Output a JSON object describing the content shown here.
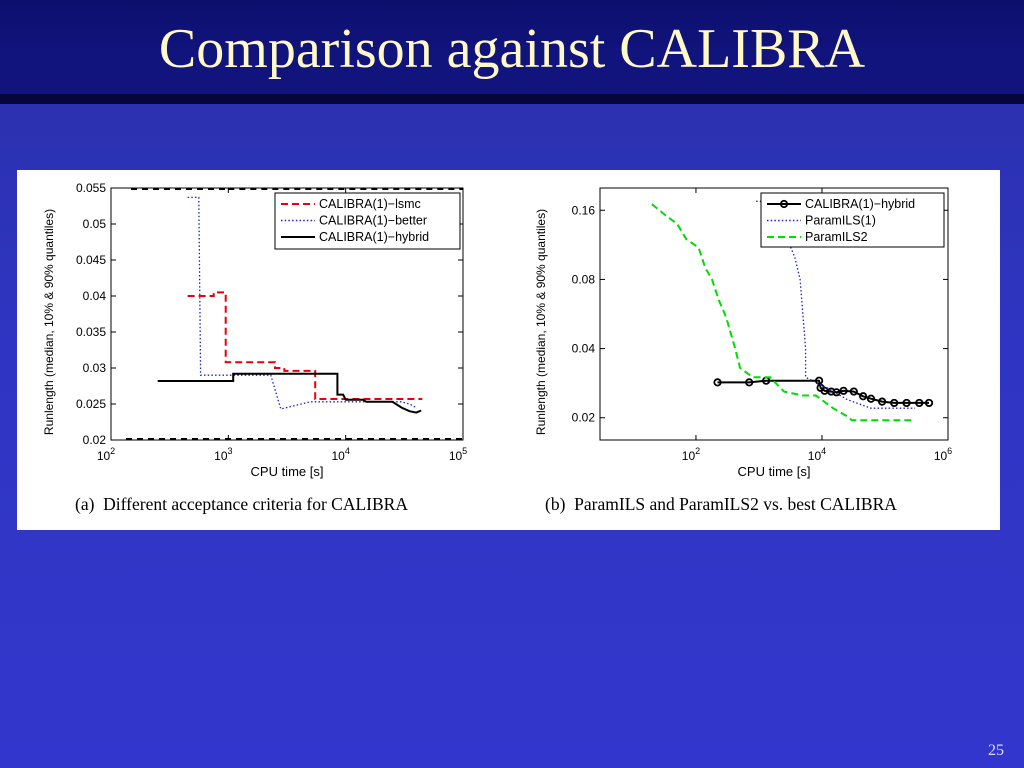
{
  "slide": {
    "title": "Comparison against CALIBRA",
    "page_number": "25"
  },
  "captions": {
    "a": "(a)  Different acceptance criteria for CALIBRA",
    "b": "(b)  ParamILS and ParamILS2 vs. best CALIBRA"
  },
  "colors": {
    "title_text": "#fff8c8",
    "background": "#3034c4",
    "series_red": "#e8000b",
    "series_blue": "#1f1fd0",
    "series_black": "#000000",
    "series_green": "#00dd00"
  },
  "chart_data": [
    {
      "type": "line",
      "xscale": "log",
      "xlim": [
        100,
        100000
      ],
      "ylim": [
        0.02,
        0.055
      ],
      "xlabel": "CPU time [s]",
      "ylabel": "Runlength (median, 10% & 90% quantiles)",
      "x_ticks": [
        {
          "base": "10",
          "exp": "2",
          "value": 100
        },
        {
          "base": "10",
          "exp": "3",
          "value": 1000
        },
        {
          "base": "10",
          "exp": "4",
          "value": 10000
        },
        {
          "base": "10",
          "exp": "5",
          "value": 100000
        }
      ],
      "y_ticks": [
        {
          "label": "0.02",
          "value": 0.02
        },
        {
          "label": "0.025",
          "value": 0.025
        },
        {
          "label": "0.03",
          "value": 0.03
        },
        {
          "label": "0.035",
          "value": 0.035
        },
        {
          "label": "0.04",
          "value": 0.04
        },
        {
          "label": "0.045",
          "value": 0.045
        },
        {
          "label": "0.05",
          "value": 0.05
        },
        {
          "label": "0.055",
          "value": 0.055
        }
      ],
      "legend_position": "top-right",
      "series": [
        {
          "name": "CALIBRA(1)−lsmc",
          "style": "dashed",
          "color": "#e8000b",
          "points": [
            [
              450,
              0.04
            ],
            [
              750,
              0.04
            ],
            [
              750,
              0.0405
            ],
            [
              950,
              0.0405
            ],
            [
              950,
              0.0308
            ],
            [
              2500,
              0.0308
            ],
            [
              2500,
              0.03
            ],
            [
              3000,
              0.03
            ],
            [
              3000,
              0.0296
            ],
            [
              5500,
              0.0296
            ],
            [
              5500,
              0.0257
            ],
            [
              45000,
              0.0257
            ]
          ]
        },
        {
          "name": "CALIBRA(1)−better",
          "style": "dotted",
          "color": "#1f1fd0",
          "points": [
            [
              450,
              0.0537
            ],
            [
              560,
              0.0537
            ],
            [
              580,
              0.029
            ],
            [
              2200,
              0.029
            ],
            [
              2300,
              0.029
            ],
            [
              2800,
              0.0243
            ],
            [
              5000,
              0.0253
            ],
            [
              15000,
              0.0253
            ],
            [
              25000,
              0.0253
            ],
            [
              30000,
              0.0253
            ],
            [
              35000,
              0.025
            ],
            [
              40000,
              0.0245
            ]
          ]
        },
        {
          "name": "CALIBRA(1)−hybrid",
          "style": "solid",
          "color": "#000000",
          "points": [
            [
              250,
              0.0282
            ],
            [
              1100,
              0.0282
            ],
            [
              1100,
              0.0292
            ],
            [
              8500,
              0.0292
            ],
            [
              8500,
              0.0263
            ],
            [
              9500,
              0.0263
            ],
            [
              10000,
              0.0256
            ],
            [
              14000,
              0.0256
            ],
            [
              15000,
              0.0253
            ],
            [
              25000,
              0.0253
            ],
            [
              30000,
              0.0245
            ],
            [
              35000,
              0.024
            ],
            [
              40000,
              0.0238
            ],
            [
              44000,
              0.0241
            ]
          ]
        }
      ],
      "quantile_markers": {
        "top_left_x": [
          100,
          1000
        ],
        "top_right_x": [
          1000,
          100000
        ],
        "bottom_x": [
          100,
          100000
        ]
      }
    },
    {
      "type": "line",
      "xscale": "log",
      "yscale": "log",
      "xlim": [
        3,
        1000000
      ],
      "ylim": [
        0.016,
        0.2
      ],
      "xlabel": "CPU time [s]",
      "ylabel": "Runlength (median, 10% & 90% quantiles)",
      "x_ticks": [
        {
          "base": "10",
          "exp": "2",
          "value": 100
        },
        {
          "base": "10",
          "exp": "4",
          "value": 10000
        },
        {
          "base": "10",
          "exp": "6",
          "value": 1000000
        }
      ],
      "y_ticks": [
        {
          "label": "0.02",
          "value": 0.02
        },
        {
          "label": "0.04",
          "value": 0.04
        },
        {
          "label": "0.08",
          "value": 0.08
        },
        {
          "label": "0.16",
          "value": 0.16
        }
      ],
      "legend_position": "top-right",
      "series": [
        {
          "name": "CALIBRA(1)−hybrid",
          "style": "solid-markers",
          "color": "#000000",
          "points": [
            [
              220,
              0.0285
            ],
            [
              700,
              0.0285
            ],
            [
              1300,
              0.029
            ],
            [
              9000,
              0.029
            ],
            [
              9500,
              0.027
            ],
            [
              11000,
              0.0262
            ],
            [
              14000,
              0.026
            ],
            [
              17000,
              0.0258
            ],
            [
              22000,
              0.0262
            ],
            [
              32000,
              0.026
            ],
            [
              45000,
              0.0248
            ],
            [
              60000,
              0.0242
            ],
            [
              90000,
              0.0235
            ],
            [
              140000,
              0.0232
            ],
            [
              220000,
              0.0232
            ],
            [
              350000,
              0.0232
            ],
            [
              500000,
              0.0232
            ]
          ]
        },
        {
          "name": "ParamILS(1)",
          "style": "dotted",
          "color": "#1f1fd0",
          "points": [
            [
              900,
              0.175
            ],
            [
              1300,
              0.175
            ],
            [
              1500,
              0.155
            ],
            [
              2200,
              0.14
            ],
            [
              3000,
              0.115
            ],
            [
              3700,
              0.1
            ],
            [
              4500,
              0.08
            ],
            [
              5500,
              0.04
            ],
            [
              5500,
              0.03
            ],
            [
              12000,
              0.027
            ],
            [
              25000,
              0.024
            ],
            [
              60000,
              0.022
            ],
            [
              120000,
              0.022
            ],
            [
              300000,
              0.022
            ]
          ]
        },
        {
          "name": "ParamILS2",
          "style": "dashed",
          "color": "#00dd00",
          "points": [
            [
              20,
              0.17
            ],
            [
              35,
              0.15
            ],
            [
              50,
              0.14
            ],
            [
              70,
              0.12
            ],
            [
              110,
              0.11
            ],
            [
              140,
              0.09
            ],
            [
              180,
              0.08
            ],
            [
              230,
              0.065
            ],
            [
              300,
              0.055
            ],
            [
              420,
              0.04
            ],
            [
              500,
              0.033
            ],
            [
              800,
              0.03
            ],
            [
              1500,
              0.03
            ],
            [
              2500,
              0.026
            ],
            [
              5000,
              0.025
            ],
            [
              8000,
              0.025
            ],
            [
              15000,
              0.022
            ],
            [
              25000,
              0.0203
            ],
            [
              30000,
              0.0195
            ],
            [
              90000,
              0.0195
            ],
            [
              150000,
              0.0195
            ],
            [
              300000,
              0.0195
            ]
          ]
        }
      ]
    }
  ]
}
